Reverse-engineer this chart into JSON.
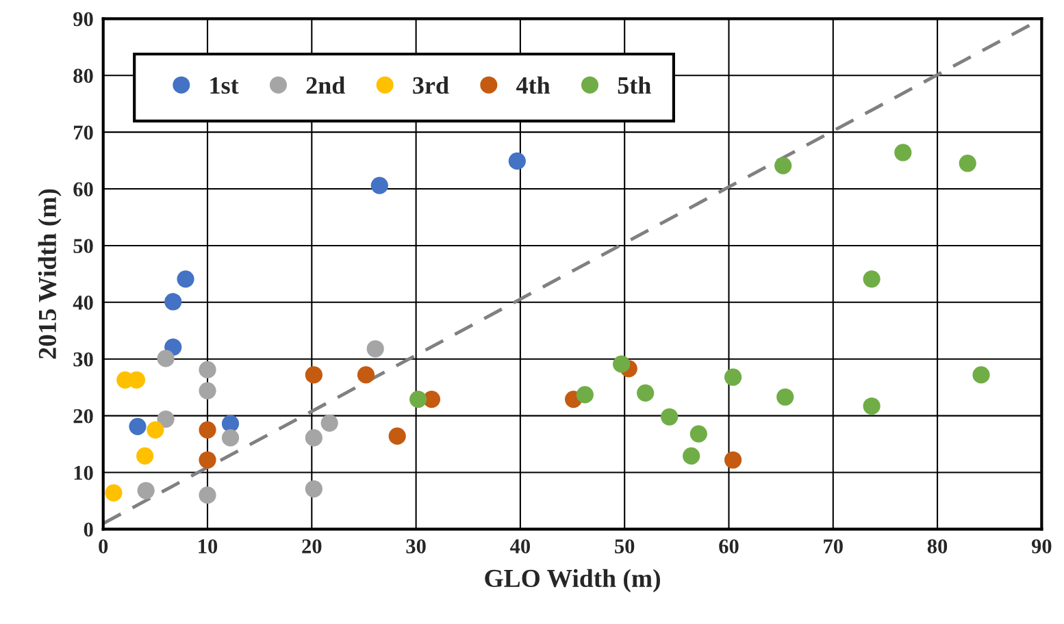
{
  "chart_data": {
    "type": "scatter",
    "xlabel": "GLO Width (m)",
    "ylabel": "2015 Width (m)",
    "xlim": [
      0,
      90
    ],
    "ylim": [
      0,
      90
    ],
    "xticks": [
      0,
      10,
      20,
      30,
      40,
      50,
      60,
      70,
      80,
      90
    ],
    "yticks": [
      0,
      10,
      20,
      30,
      40,
      50,
      60,
      70,
      80,
      90
    ],
    "grid": true,
    "legend": "top left",
    "marker": "circle",
    "series": [
      {
        "name": "1st",
        "color": "#4472c4",
        "x": [
          3.3,
          6.7,
          6.7,
          7.9,
          12.2,
          26.5,
          39.7
        ],
        "values": [
          18.1,
          32.1,
          40.1,
          44.1,
          18.6,
          60.6,
          64.9
        ]
      },
      {
        "name": "2nd",
        "color": "#a5a5a5",
        "x": [
          6.0,
          6.0,
          4.1,
          10.0,
          10.0,
          10.0,
          12.2,
          20.2,
          20.2,
          21.7,
          26.1
        ],
        "values": [
          30.1,
          19.4,
          6.8,
          28.1,
          24.4,
          6.0,
          16.1,
          16.1,
          7.1,
          18.7,
          31.8
        ]
      },
      {
        "name": "3rd",
        "color": "#ffc000",
        "x": [
          1.0,
          2.1,
          3.2,
          4.0,
          5.0
        ],
        "values": [
          6.4,
          26.3,
          26.3,
          12.9,
          17.5
        ]
      },
      {
        "name": "4th",
        "color": "#c55a11",
        "x": [
          10.0,
          10.0,
          20.2,
          25.2,
          28.2,
          31.5,
          45.1,
          50.4,
          60.4
        ],
        "values": [
          17.5,
          12.2,
          27.2,
          27.2,
          16.4,
          22.9,
          22.9,
          28.3,
          12.2
        ]
      },
      {
        "name": "5th",
        "color": "#70ad47",
        "x": [
          30.2,
          46.2,
          49.7,
          52.0,
          54.3,
          56.4,
          57.1,
          60.4,
          65.4,
          65.2,
          73.7,
          73.7,
          76.7,
          82.9,
          84.2
        ],
        "values": [
          22.9,
          23.7,
          29.1,
          24.0,
          19.8,
          12.9,
          16.8,
          26.8,
          23.3,
          64.1,
          44.1,
          21.7,
          66.4,
          64.5,
          27.2
        ]
      },
      {
        "type": "line",
        "color": "#808080",
        "line_style": "dashed",
        "marker": "none",
        "x": [
          0,
          90
        ],
        "values": [
          1,
          90
        ]
      }
    ]
  }
}
